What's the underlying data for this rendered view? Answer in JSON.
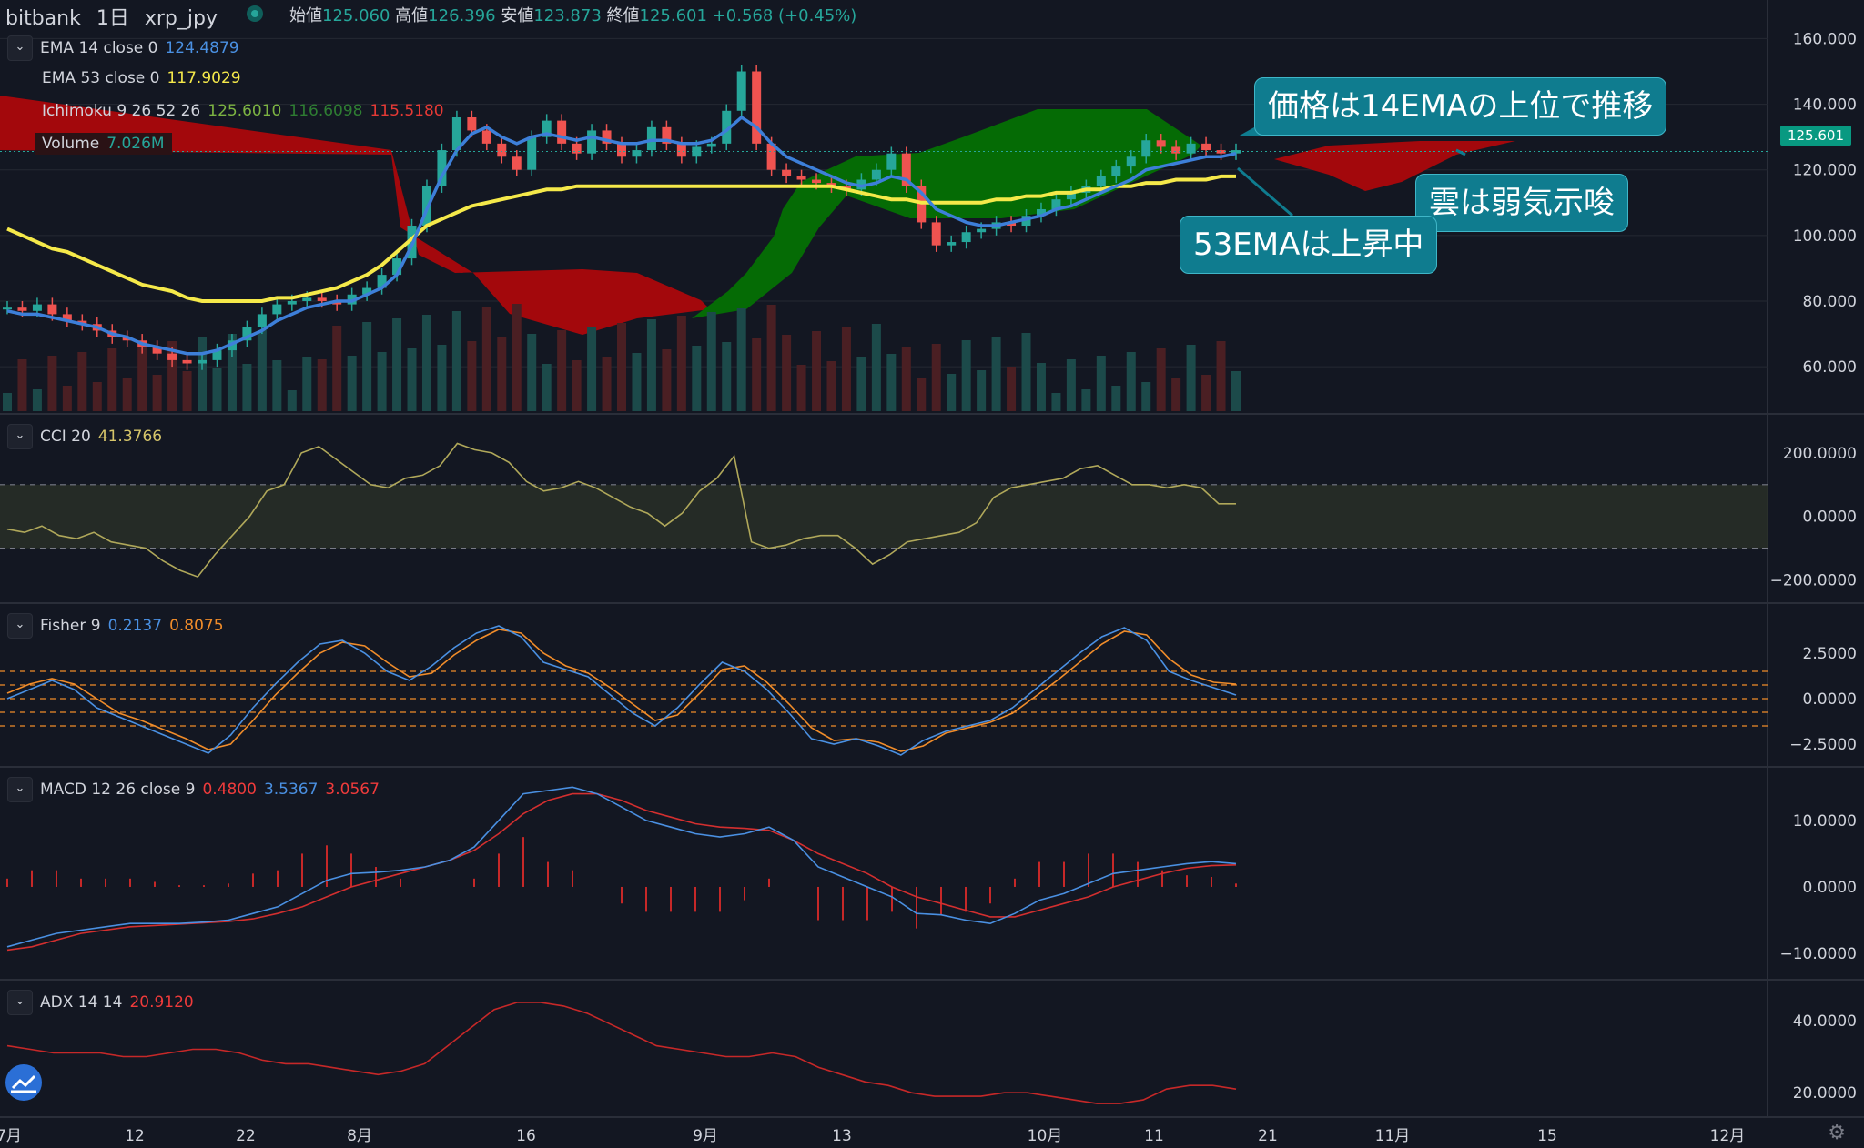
{
  "header": {
    "exchange": "bitbank",
    "interval": "1日",
    "symbol": "xrp_jpy",
    "open_label": "始値",
    "open": "125.060",
    "high_label": "高値",
    "high": "126.396",
    "low_label": "安値",
    "low": "123.873",
    "close_label": "終値",
    "close": "125.601",
    "change": "+0.568 (+0.45%)"
  },
  "legend": {
    "ema14": {
      "label": "EMA 14 close 0",
      "value": "124.4879",
      "color": "#4a90e2"
    },
    "ema53": {
      "label": "EMA 53 close 0",
      "value": "117.9029",
      "color": "#f5e94a"
    },
    "ichimoku": {
      "label": "Ichimoku 9 26 52 26",
      "v1": "125.6010",
      "v2": "116.6098",
      "v3": "115.5180"
    },
    "volume": {
      "label": "Volume",
      "value": "7.026M"
    },
    "cci": {
      "label": "CCI 20",
      "value": "41.3766"
    },
    "fisher": {
      "label": "Fisher 9",
      "v1": "0.2137",
      "v2": "0.8075"
    },
    "macd": {
      "label": "MACD 12 26 close 9",
      "v1": "0.4800",
      "v2": "3.5367",
      "v3": "3.0567"
    },
    "adx": {
      "label": "ADX 14 14",
      "value": "20.9120"
    }
  },
  "current_price": "125.601",
  "annotations": {
    "a1": "価格は14EMAの上位で推移",
    "a2": "雲は弱気示唆",
    "a3": "53EMAは上昇中"
  },
  "colors": {
    "bg": "#131722",
    "up": "#26a69a",
    "down": "#ef5350",
    "ema14": "#3d7fd9",
    "ema53": "#f5e94a",
    "cloud_bear": "#a3080c",
    "cloud_bull": "#056b05",
    "callout": "#0f7c8f"
  },
  "chart_data": [
    {
      "type": "candlestick",
      "title": "",
      "y_ticks": [
        "60.000",
        "80.000",
        "100.000",
        "120.000",
        "140.000",
        "160.000"
      ],
      "ylim": [
        47,
        164
      ],
      "x_ticks": [
        "7月",
        "12",
        "22",
        "8月",
        "16",
        "9月",
        "13",
        "10月",
        "11",
        "21",
        "11月",
        "15",
        "12月"
      ],
      "close_series": [
        78,
        77,
        79,
        76,
        74,
        73,
        71,
        69,
        68,
        66,
        64,
        62,
        61,
        62,
        65,
        68,
        72,
        76,
        79,
        80,
        81,
        80,
        79,
        82,
        84,
        88,
        93,
        103,
        115,
        126,
        136,
        132,
        128,
        124,
        120,
        130,
        135,
        128,
        125,
        132,
        128,
        124,
        126,
        133,
        128,
        124,
        127,
        128,
        138,
        150,
        128,
        120,
        118,
        117,
        116,
        115,
        114,
        117,
        120,
        125,
        115,
        104,
        97,
        98,
        101,
        102,
        104,
        103,
        106,
        108,
        111,
        113,
        115,
        118,
        121,
        124,
        129,
        127,
        125,
        128,
        126,
        125,
        126
      ],
      "ema14": [
        77,
        76,
        76,
        75,
        74,
        73,
        72,
        70,
        69,
        67,
        66,
        65,
        64,
        64,
        65,
        67,
        69,
        71,
        74,
        76,
        78,
        79,
        80,
        80,
        82,
        84,
        88,
        97,
        108,
        118,
        126,
        131,
        133,
        130,
        128,
        130,
        131,
        130,
        129,
        130,
        129,
        128,
        128,
        129,
        129,
        128,
        128,
        129,
        132,
        136,
        133,
        128,
        124,
        122,
        120,
        118,
        116,
        115,
        116,
        118,
        117,
        113,
        108,
        106,
        104,
        103,
        103,
        104,
        105,
        106,
        108,
        109,
        111,
        113,
        115,
        117,
        120,
        121,
        122,
        123,
        124,
        124,
        125
      ],
      "ema53": [
        102,
        100,
        98,
        96,
        95,
        93,
        91,
        89,
        87,
        85,
        84,
        83,
        81,
        80,
        80,
        80,
        80,
        80,
        81,
        81,
        82,
        83,
        84,
        86,
        88,
        91,
        95,
        99,
        103,
        105,
        107,
        109,
        110,
        111,
        112,
        113,
        114,
        114,
        115,
        115,
        115,
        115,
        115,
        115,
        115,
        115,
        115,
        115,
        115,
        115,
        115,
        115,
        115,
        115,
        115,
        115,
        114,
        113,
        112,
        111,
        111,
        110,
        110,
        110,
        110,
        110,
        111,
        111,
        112,
        112,
        113,
        113,
        114,
        114,
        115,
        115,
        116,
        116,
        117,
        117,
        117,
        118,
        118
      ]
    },
    {
      "type": "line",
      "title": "CCI 20",
      "y_ticks": [
        "200.0000",
        "0.0000",
        "−200.0000"
      ],
      "ylim": [
        -250,
        280
      ],
      "values": [
        -40,
        -50,
        -30,
        -60,
        -70,
        -50,
        -80,
        -90,
        -100,
        -140,
        -170,
        -190,
        -120,
        -60,
        0,
        80,
        100,
        200,
        220,
        180,
        140,
        100,
        90,
        120,
        130,
        160,
        230,
        210,
        200,
        170,
        110,
        80,
        90,
        110,
        90,
        60,
        30,
        10,
        -30,
        10,
        80,
        120,
        190,
        -80,
        -100,
        -90,
        -70,
        -60,
        -60,
        -100,
        -150,
        -120,
        -80,
        -70,
        -60,
        -50,
        -20,
        60,
        90,
        100,
        110,
        120,
        150,
        160,
        130,
        100,
        100,
        90,
        100,
        90,
        40,
        40
      ]
    },
    {
      "type": "line",
      "title": "Fisher 9",
      "y_ticks": [
        "2.5000",
        "0.0000",
        "−2.5000"
      ],
      "ylim": [
        -3.5,
        4.5
      ],
      "series": [
        {
          "name": "",
          "values": [
            0,
            0.5,
            1,
            0.5,
            -0.5,
            -1,
            -1.5,
            -2,
            -2.5,
            -3,
            -2,
            -0.5,
            0.8,
            2,
            3,
            3.2,
            2.5,
            1.5,
            1,
            1.8,
            2.8,
            3.6,
            4,
            3.4,
            2,
            1.6,
            1.2,
            0.2,
            -0.8,
            -1.5,
            -0.5,
            0.8,
            2,
            1.5,
            0.5,
            -0.8,
            -2.2,
            -2.5,
            -2.2,
            -2.6,
            -3.1,
            -2.3,
            -1.8,
            -1.5,
            -1.2,
            -0.5,
            0.5,
            1.5,
            2.5,
            3.4,
            3.9,
            3.2,
            1.5,
            1.0,
            0.6,
            0.2
          ]
        },
        {
          "name": "",
          "values": [
            0.3,
            0.8,
            1.1,
            0.8,
            0,
            -0.8,
            -1.2,
            -1.7,
            -2.2,
            -2.8,
            -2.5,
            -1.2,
            0.2,
            1.4,
            2.5,
            3.1,
            2.9,
            2,
            1.2,
            1.4,
            2.4,
            3.2,
            3.8,
            3.6,
            2.5,
            1.8,
            1.4,
            0.6,
            -0.3,
            -1.2,
            -0.9,
            0.3,
            1.6,
            1.8,
            0.9,
            -0.3,
            -1.6,
            -2.3,
            -2.2,
            -2.4,
            -2.9,
            -2.6,
            -1.9,
            -1.6,
            -1.3,
            -0.8,
            0.1,
            1.0,
            2.0,
            3.0,
            3.7,
            3.5,
            2.2,
            1.3,
            0.9,
            0.8
          ]
        }
      ]
    },
    {
      "type": "line",
      "title": "MACD 12 26 close 9",
      "y_ticks": [
        "10.0000",
        "0.0000",
        "−10.0000"
      ],
      "ylim": [
        -13,
        16
      ],
      "series": [
        {
          "name": "",
          "values": [
            -9,
            -8,
            -7,
            -6.5,
            -6,
            -5.5,
            -5.5,
            -5.5,
            -5.3,
            -5,
            -4,
            -3,
            -1,
            1,
            2,
            2.2,
            2.5,
            3,
            4,
            6,
            10,
            14,
            14.5,
            15,
            14,
            12,
            10,
            9,
            8,
            7.5,
            8,
            9,
            7,
            3,
            1.5,
            0,
            -1.5,
            -4,
            -4.2,
            -5,
            -5.5,
            -4,
            -2,
            -1,
            0.5,
            2,
            2.5,
            3,
            3.5,
            3.8,
            3.5
          ]
        },
        {
          "name": "",
          "values": [
            -9.5,
            -9,
            -8,
            -7,
            -6.5,
            -6,
            -5.8,
            -5.6,
            -5.4,
            -5.2,
            -4.8,
            -4,
            -3,
            -1.5,
            0,
            1,
            2,
            3,
            4,
            5.5,
            8,
            11,
            13,
            14,
            14,
            13,
            11.5,
            10.5,
            9.5,
            9,
            8.8,
            8.5,
            7,
            5,
            3.5,
            2,
            0,
            -1.5,
            -2.5,
            -3.5,
            -4.5,
            -4.5,
            -3.5,
            -2.5,
            -1.5,
            0,
            1,
            2,
            2.8,
            3.2,
            3.3
          ]
        }
      ]
    },
    {
      "type": "line",
      "title": "ADX 14 14",
      "y_ticks": [
        "40.0000",
        "20.0000"
      ],
      "ylim": [
        14,
        48
      ],
      "values": [
        33,
        32,
        31,
        31,
        31,
        30,
        30,
        31,
        32,
        32,
        31,
        29,
        28,
        28,
        27,
        26,
        25,
        26,
        28,
        33,
        38,
        43,
        45,
        45,
        44,
        42,
        39,
        36,
        33,
        32,
        31,
        30,
        30,
        31,
        30,
        27,
        25,
        23,
        22,
        20,
        19,
        19,
        19,
        20,
        20,
        19,
        18,
        17,
        17,
        18,
        21,
        22,
        22,
        21
      ]
    }
  ]
}
